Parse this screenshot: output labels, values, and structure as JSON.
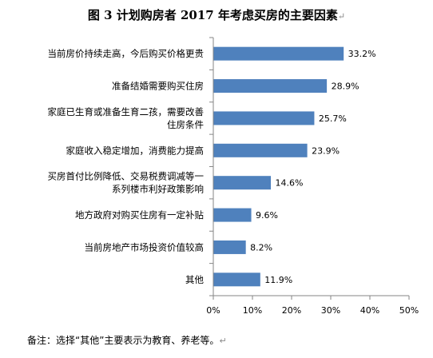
{
  "title": "图 3 计划购房者 2017 年考虑买房的主要因素",
  "para_mark": "↵",
  "note": "备注：选择“其他”主要表示为教育、养老等。",
  "chart_data": {
    "type": "bar",
    "orientation": "horizontal",
    "categories": [
      [
        "当前房价持续走高，今后购买价格更贵"
      ],
      [
        "准备结婚需要购买住房"
      ],
      [
        "家庭已生育或准备生育二孩，需要改善",
        "住房条件"
      ],
      [
        "家庭收入稳定增加，消费能力提高"
      ],
      [
        "买房首付比例降低、交易税费调减等一",
        "系列楼市利好政策影响"
      ],
      [
        "地方政府对购买住房有一定补贴"
      ],
      [
        "当前房地产市场投资价值较高"
      ],
      [
        "其他"
      ]
    ],
    "values": [
      33.2,
      28.9,
      25.7,
      23.9,
      14.6,
      9.6,
      8.2,
      11.9
    ],
    "value_labels": [
      "33.2%",
      "28.9%",
      "25.7%",
      "23.9%",
      "14.6%",
      "9.6%",
      "8.2%",
      "11.9%"
    ],
    "xlim": [
      0,
      50
    ],
    "xticks": [
      0,
      10,
      20,
      30,
      40,
      50
    ],
    "xtick_labels": [
      "0%",
      "10%",
      "20%",
      "30%",
      "40%",
      "50%"
    ],
    "grid": false,
    "bar_color": "#4f81bd",
    "axis_color": "#868686"
  }
}
